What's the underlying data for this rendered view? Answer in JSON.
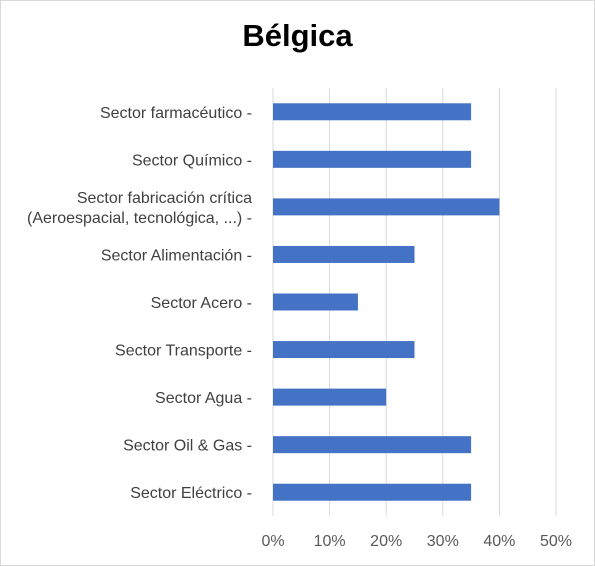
{
  "chart_data": {
    "type": "bar",
    "orientation": "horizontal",
    "title": "Bélgica",
    "categories": [
      [
        "Sector farmacéutico -"
      ],
      [
        "Sector Químico -"
      ],
      [
        "Sector fabricación crítica",
        "(Aeroespacial, tecnológica, ...) -"
      ],
      [
        "Sector Alimentación -"
      ],
      [
        "Sector Acero -"
      ],
      [
        "Sector Transporte -"
      ],
      [
        "Sector Agua -"
      ],
      [
        "Sector Oil & Gas -"
      ],
      [
        "Sector Eléctrico -"
      ]
    ],
    "values": [
      35,
      35,
      40,
      25,
      15,
      25,
      20,
      35,
      35
    ],
    "xlim": [
      0,
      50
    ],
    "xticks": [
      "0%",
      "10%",
      "20%",
      "30%",
      "40%",
      "50%"
    ],
    "grid": true,
    "bar_color": "#4472C4",
    "grid_color": "#d9d9d9"
  }
}
